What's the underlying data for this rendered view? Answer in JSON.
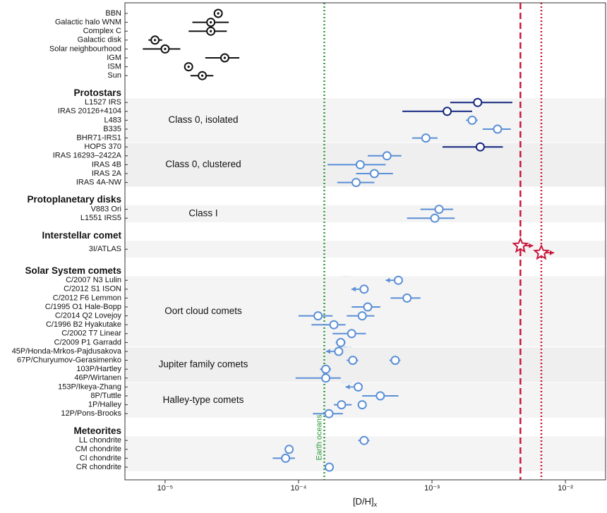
{
  "chart_data": {
    "type": "forest",
    "log_scale": true,
    "xlim": [
      5e-06,
      0.02
    ],
    "xticks": [
      {
        "value": 1e-05,
        "label": "10⁻⁵"
      },
      {
        "value": 0.0001,
        "label": "10⁻⁴"
      },
      {
        "value": 0.001,
        "label": "10⁻³"
      },
      {
        "value": 0.01,
        "label": "10⁻²"
      }
    ],
    "x_label": "[D/H]",
    "x_label_subscript": "x",
    "reference_line": {
      "label": "Earth oceans",
      "value": 0.000156,
      "color": "#2e9a3c"
    },
    "comet_band": {
      "value": 0.000223,
      "low": 0.000207,
      "high": 0.00025,
      "color": "#7fa6e0"
    },
    "sections": [
      {
        "groups": [
          {
            "rows": [
              {
                "label": "BBN",
                "points": [
                  {
                    "value": 2.5e-05,
                    "color": "#111111",
                    "marker": "circle-dot"
                  }
                ]
              },
              {
                "label": "Galactic halo WNM",
                "points": [
                  {
                    "value": 2.2e-05,
                    "low": 1.6e-05,
                    "high": 3e-05,
                    "color": "#111111",
                    "marker": "circle-dot"
                  }
                ]
              },
              {
                "label": "Complex C",
                "points": [
                  {
                    "value": 2.2e-05,
                    "low": 1.5e-05,
                    "high": 2.9e-05,
                    "color": "#111111",
                    "marker": "circle-dot"
                  }
                ]
              },
              {
                "label": "Galactic disk",
                "points": [
                  {
                    "value": 8.4e-06,
                    "low": 7.5e-06,
                    "high": 9.5e-06,
                    "color": "#111111",
                    "marker": "circle-dot"
                  }
                ]
              },
              {
                "label": "Solar neighbourhood",
                "points": [
                  {
                    "value": 1e-05,
                    "low": 6.8e-06,
                    "high": 1.3e-05,
                    "color": "#111111",
                    "marker": "circle-dot"
                  }
                ]
              },
              {
                "label": "IGM",
                "points": [
                  {
                    "value": 2.8e-05,
                    "low": 2e-05,
                    "high": 3.6e-05,
                    "color": "#111111",
                    "marker": "circle-dot"
                  }
                ]
              },
              {
                "label": "ISM",
                "points": [
                  {
                    "value": 1.5e-05,
                    "color": "#111111",
                    "marker": "circle-dot"
                  }
                ]
              },
              {
                "label": "Sun",
                "points": [
                  {
                    "value": 1.9e-05,
                    "low": 1.55e-05,
                    "high": 2.3e-05,
                    "color": "#111111",
                    "marker": "circle-dot"
                  }
                ]
              }
            ]
          }
        ]
      },
      {
        "title": "Protostars",
        "groups": [
          {
            "label": "Class 0, isolated",
            "rows": [
              {
                "label": "L1527 IRS",
                "points": [
                  {
                    "value": 0.0022,
                    "low": 0.00137,
                    "high": 0.004,
                    "color": "#13247e",
                    "marker": "circle"
                  }
                ]
              },
              {
                "label": "IRAS 20126+4104",
                "points": [
                  {
                    "value": 0.0013,
                    "low": 0.0006,
                    "high": 0.002,
                    "color": "#13247e",
                    "marker": "circle"
                  }
                ]
              },
              {
                "label": "L483",
                "points": [
                  {
                    "value": 0.002,
                    "low": 0.0018,
                    "high": 0.0022,
                    "color": "#5b8fd6",
                    "marker": "circle"
                  }
                ]
              },
              {
                "label": "B335",
                "points": [
                  {
                    "value": 0.0031,
                    "low": 0.0024,
                    "high": 0.0039,
                    "color": "#5b8fd6",
                    "marker": "circle"
                  }
                ]
              },
              {
                "label": "BHR71-IRS1",
                "points": [
                  {
                    "value": 0.0009,
                    "low": 0.00071,
                    "high": 0.0011,
                    "color": "#5b8fd6",
                    "marker": "circle"
                  }
                ]
              }
            ]
          },
          {
            "label": "Class 0, clustered",
            "rows": [
              {
                "label": "HOPS 370",
                "points": [
                  {
                    "value": 0.0023,
                    "low": 0.0012,
                    "high": 0.0034,
                    "color": "#13247e",
                    "marker": "circle"
                  }
                ]
              },
              {
                "label": "IRAS 16293–2422A",
                "points": [
                  {
                    "value": 0.00046,
                    "low": 0.00033,
                    "high": 0.00059,
                    "color": "#5b8fd6",
                    "marker": "circle"
                  }
                ]
              },
              {
                "label": "IRAS 4B",
                "points": [
                  {
                    "value": 0.00029,
                    "low": 0.000165,
                    "high": 0.00045,
                    "color": "#5b8fd6",
                    "marker": "circle"
                  }
                ]
              },
              {
                "label": "IRAS 2A",
                "points": [
                  {
                    "value": 0.00037,
                    "low": 0.00027,
                    "high": 0.00051,
                    "color": "#5b8fd6",
                    "marker": "circle"
                  }
                ]
              },
              {
                "label": "IRAS 4A-NW",
                "points": [
                  {
                    "value": 0.00027,
                    "low": 0.000195,
                    "high": 0.00037,
                    "color": "#5b8fd6",
                    "marker": "circle"
                  }
                ]
              }
            ]
          }
        ]
      },
      {
        "title": "Protoplanetary disks",
        "groups": [
          {
            "label": "Class I",
            "rows": [
              {
                "label": "V883 Ori",
                "points": [
                  {
                    "value": 0.00113,
                    "low": 0.00082,
                    "high": 0.00144,
                    "color": "#5b8fd6",
                    "marker": "circle"
                  }
                ]
              },
              {
                "label": "L1551 IRS5",
                "points": [
                  {
                    "value": 0.00105,
                    "low": 0.00065,
                    "high": 0.00148,
                    "color": "#5b8fd6",
                    "marker": "circle"
                  }
                ]
              }
            ]
          }
        ]
      },
      {
        "title": "Interstellar comet",
        "groups": [
          {
            "rows": [
              {
                "label": "3I/ATLAS",
                "points": [
                  {
                    "value": 0.0046,
                    "color": "#c8183c",
                    "marker": "star",
                    "limit": "lower",
                    "guide": "dashed"
                  },
                  {
                    "value": 0.0066,
                    "color": "#c8183c",
                    "marker": "star",
                    "limit": "lower",
                    "guide": "dotted"
                  }
                ]
              }
            ]
          }
        ]
      },
      {
        "title": "Solar System comets",
        "groups": [
          {
            "label": "Oort cloud comets",
            "rows": [
              {
                "label": "C/2007 N3 Lulin",
                "points": [
                  {
                    "value": 0.00056,
                    "color": "#5b8fd6",
                    "marker": "circle",
                    "limit": "upper"
                  }
                ]
              },
              {
                "label": "C/2012 S1 ISON",
                "points": [
                  {
                    "value": 0.00031,
                    "color": "#5b8fd6",
                    "marker": "circle",
                    "limit": "upper"
                  }
                ]
              },
              {
                "label": "C/2012 F6 Lemmon",
                "points": [
                  {
                    "value": 0.00065,
                    "low": 0.00049,
                    "high": 0.00082,
                    "color": "#5b8fd6",
                    "marker": "circle"
                  }
                ]
              },
              {
                "label": "C/1995 O1 Hale-Bopp",
                "points": [
                  {
                    "value": 0.00033,
                    "low": 0.00025,
                    "high": 0.00041,
                    "color": "#5b8fd6",
                    "marker": "circle"
                  }
                ]
              },
              {
                "label": "C/2014 Q2 Lovejoy",
                "points": [
                  {
                    "value": 0.00014,
                    "low": 0.0001,
                    "high": 0.00018,
                    "color": "#5b8fd6",
                    "marker": "circle"
                  },
                  {
                    "value": 0.0003,
                    "low": 0.00023,
                    "high": 0.00037,
                    "color": "#5b8fd6",
                    "marker": "circle"
                  }
                ]
              },
              {
                "label": "C/1996 B2 Hyakutake",
                "points": [
                  {
                    "value": 0.000184,
                    "low": 0.000125,
                    "high": 0.000225,
                    "color": "#5b8fd6",
                    "marker": "circle"
                  }
                ]
              },
              {
                "label": "C/2002 T7 Linear",
                "points": [
                  {
                    "value": 0.00025,
                    "low": 0.00018,
                    "high": 0.00032,
                    "color": "#5b8fd6",
                    "marker": "circle"
                  }
                ]
              },
              {
                "label": "C/2009 P1 Garradd",
                "points": [
                  {
                    "value": 0.000207,
                    "low": 0.00019,
                    "high": 0.000225,
                    "color": "#5b8fd6",
                    "marker": "circle"
                  }
                ]
              }
            ]
          },
          {
            "label": "Jupiter family comets",
            "rows": [
              {
                "label": "45P/Honda-Mrkos-Pajdusakova",
                "points": [
                  {
                    "value": 0.0002,
                    "color": "#5b8fd6",
                    "marker": "circle",
                    "limit": "upper"
                  }
                ]
              },
              {
                "label": "67P/Churyumov-Gerasimenko",
                "points": [
                  {
                    "value": 0.000255,
                    "low": 0.00023,
                    "high": 0.00028,
                    "color": "#5b8fd6",
                    "marker": "circle"
                  },
                  {
                    "value": 0.00053,
                    "low": 0.00048,
                    "high": 0.00058,
                    "color": "#5b8fd6",
                    "marker": "circle"
                  }
                ]
              },
              {
                "label": "103P/Hartley",
                "points": [
                  {
                    "value": 0.00016,
                    "low": 0.000145,
                    "high": 0.000175,
                    "color": "#5b8fd6",
                    "marker": "circle"
                  }
                ]
              },
              {
                "label": "46P/Wirtanen",
                "points": [
                  {
                    "value": 0.00016,
                    "low": 9.5e-05,
                    "high": 0.000207,
                    "color": "#5b8fd6",
                    "marker": "circle"
                  }
                ]
              }
            ]
          },
          {
            "label": "Halley-type comets",
            "rows": [
              {
                "label": "153P/Ikeya-Zhang",
                "points": [
                  {
                    "value": 0.00028,
                    "color": "#5b8fd6",
                    "marker": "circle",
                    "limit": "upper"
                  }
                ]
              },
              {
                "label": "8P/Tuttle",
                "points": [
                  {
                    "value": 0.00041,
                    "low": 0.0003,
                    "high": 0.00056,
                    "color": "#5b8fd6",
                    "marker": "circle"
                  }
                ]
              },
              {
                "label": "1P/Halley",
                "points": [
                  {
                    "value": 0.00021,
                    "low": 0.000184,
                    "high": 0.00025,
                    "color": "#5b8fd6",
                    "marker": "circle"
                  },
                  {
                    "value": 0.0003,
                    "color": "#5b8fd6",
                    "marker": "circle"
                  }
                ]
              },
              {
                "label": "12P/Pons-Brooks",
                "points": [
                  {
                    "value": 0.000169,
                    "low": 0.000128,
                    "high": 0.000215,
                    "color": "#5b8fd6",
                    "marker": "circle"
                  }
                ]
              }
            ]
          }
        ]
      },
      {
        "title": "Meteorites",
        "groups": [
          {
            "rows": [
              {
                "label": "LL chondrite",
                "points": [
                  {
                    "value": 0.00031,
                    "low": 0.00028,
                    "high": 0.00034,
                    "color": "#5b8fd6",
                    "marker": "circle"
                  }
                ]
              },
              {
                "label": "CM chondrite",
                "points": [
                  {
                    "value": 8.5e-05,
                    "color": "#5b8fd6",
                    "marker": "circle"
                  }
                ]
              },
              {
                "label": "CI chondrite",
                "points": [
                  {
                    "value": 8e-05,
                    "low": 6.4e-05,
                    "high": 9.4e-05,
                    "color": "#5b8fd6",
                    "marker": "circle"
                  }
                ]
              },
              {
                "label": "CR chondrite",
                "points": [
                  {
                    "value": 0.00017,
                    "color": "#5b8fd6",
                    "marker": "circle"
                  }
                ]
              }
            ]
          }
        ]
      }
    ]
  }
}
